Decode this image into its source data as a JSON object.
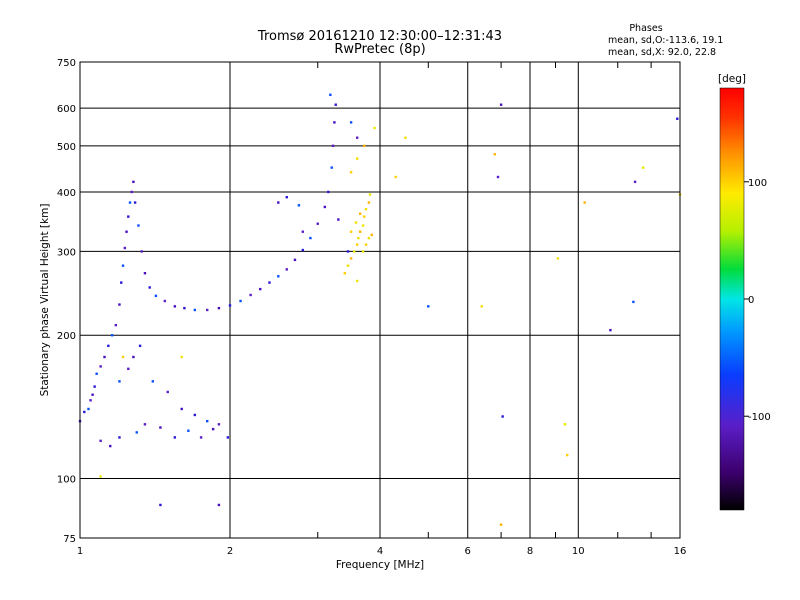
{
  "chart_data": {
    "type": "scatter",
    "title": "Tromsø 20161210 12:30:00–12:31:43",
    "subtitle": "RwPretec (8p)",
    "xlabel": "Frequency [MHz]",
    "ylabel": "Stationary phase Virtual Height [km]",
    "x_scale": "log",
    "y_scale": "log",
    "xlim": [
      1,
      16
    ],
    "ylim": [
      75,
      750
    ],
    "x_ticks": [
      1,
      2,
      4,
      6,
      8,
      10,
      16
    ],
    "x_minor_ticks": [
      3,
      5,
      7,
      9,
      12,
      14
    ],
    "y_ticks": [
      75,
      100,
      200,
      300,
      400,
      500,
      600,
      750
    ],
    "grid": true,
    "phases_box": {
      "title": "Phases",
      "line1": "mean, sd,O:-113.6, 19.1",
      "line2": "mean, sd,X:  92.0, 22.8"
    },
    "colorbar": {
      "label": "[deg]",
      "range": [
        -180,
        180
      ],
      "ticks": [
        100,
        0,
        -100
      ]
    },
    "series": [
      {
        "name": "O",
        "points": [
          [
            1.0,
            132
          ],
          [
            1.02,
            138
          ],
          [
            1.04,
            140
          ],
          [
            1.05,
            146
          ],
          [
            1.06,
            150
          ],
          [
            1.07,
            156
          ],
          [
            1.08,
            166
          ],
          [
            1.1,
            172
          ],
          [
            1.12,
            180
          ],
          [
            1.14,
            190
          ],
          [
            1.16,
            200
          ],
          [
            1.18,
            210
          ],
          [
            1.2,
            232
          ],
          [
            1.21,
            258
          ],
          [
            1.22,
            280
          ],
          [
            1.23,
            305
          ],
          [
            1.24,
            330
          ],
          [
            1.25,
            355
          ],
          [
            1.26,
            380
          ],
          [
            1.27,
            400
          ],
          [
            1.28,
            420
          ],
          [
            1.29,
            380
          ],
          [
            1.31,
            340
          ],
          [
            1.33,
            300
          ],
          [
            1.35,
            270
          ],
          [
            1.38,
            252
          ],
          [
            1.42,
            242
          ],
          [
            1.48,
            236
          ],
          [
            1.55,
            230
          ],
          [
            1.62,
            228
          ],
          [
            1.7,
            226
          ],
          [
            1.8,
            226
          ],
          [
            1.9,
            228
          ],
          [
            2.0,
            231
          ],
          [
            2.1,
            236
          ],
          [
            2.2,
            243
          ],
          [
            2.3,
            250
          ],
          [
            2.4,
            258
          ],
          [
            2.5,
            266
          ],
          [
            2.6,
            275
          ],
          [
            2.7,
            288
          ],
          [
            2.8,
            302
          ],
          [
            2.9,
            320
          ],
          [
            3.0,
            343
          ],
          [
            3.1,
            372
          ],
          [
            3.15,
            400
          ],
          [
            3.2,
            450
          ],
          [
            3.22,
            500
          ],
          [
            3.24,
            560
          ],
          [
            3.26,
            610
          ],
          [
            3.18,
            640
          ],
          [
            1.1,
            120
          ],
          [
            1.15,
            117
          ],
          [
            1.2,
            122
          ],
          [
            1.3,
            125
          ],
          [
            1.35,
            130
          ],
          [
            1.45,
            128
          ],
          [
            1.55,
            122
          ],
          [
            1.65,
            126
          ],
          [
            1.75,
            122
          ],
          [
            1.85,
            127
          ],
          [
            1.98,
            122
          ],
          [
            1.2,
            160
          ],
          [
            1.25,
            170
          ],
          [
            1.28,
            180
          ],
          [
            1.32,
            190
          ],
          [
            1.4,
            160
          ],
          [
            1.5,
            152
          ],
          [
            1.6,
            140
          ],
          [
            1.7,
            136
          ],
          [
            1.8,
            132
          ],
          [
            1.9,
            130
          ],
          [
            2.5,
            380
          ],
          [
            2.6,
            390
          ],
          [
            2.75,
            375
          ],
          [
            2.8,
            330
          ],
          [
            3.3,
            350
          ],
          [
            3.45,
            300
          ],
          [
            3.5,
            560
          ],
          [
            3.6,
            520
          ],
          [
            1.9,
            88
          ],
          [
            1.45,
            88
          ],
          [
            5.0,
            230
          ],
          [
            6.9,
            430
          ],
          [
            7.0,
            610
          ],
          [
            7.05,
            135
          ],
          [
            12.9,
            235
          ],
          [
            13.0,
            420
          ],
          [
            11.6,
            205
          ],
          [
            15.8,
            570
          ]
        ]
      },
      {
        "name": "X",
        "points": [
          [
            3.4,
            270
          ],
          [
            3.45,
            280
          ],
          [
            3.5,
            290
          ],
          [
            3.55,
            300
          ],
          [
            3.6,
            310
          ],
          [
            3.62,
            320
          ],
          [
            3.65,
            330
          ],
          [
            3.7,
            340
          ],
          [
            3.72,
            355
          ],
          [
            3.75,
            368
          ],
          [
            3.8,
            380
          ],
          [
            3.82,
            395
          ],
          [
            3.5,
            330
          ],
          [
            3.58,
            345
          ],
          [
            3.65,
            360
          ],
          [
            3.7,
            300
          ],
          [
            3.75,
            310
          ],
          [
            3.8,
            320
          ],
          [
            3.85,
            325
          ],
          [
            3.6,
            260
          ],
          [
            3.5,
            440
          ],
          [
            3.6,
            470
          ],
          [
            3.72,
            500
          ],
          [
            3.9,
            545
          ],
          [
            4.3,
            430
          ],
          [
            4.5,
            520
          ],
          [
            6.8,
            480
          ],
          [
            9.4,
            130
          ],
          [
            9.5,
            112
          ],
          [
            9.1,
            290
          ],
          [
            10.3,
            380
          ],
          [
            13.5,
            450
          ],
          [
            16.0,
            395
          ],
          [
            6.4,
            230
          ],
          [
            7.0,
            80
          ],
          [
            1.1,
            101
          ],
          [
            1.22,
            180
          ],
          [
            1.6,
            180
          ]
        ]
      }
    ]
  }
}
